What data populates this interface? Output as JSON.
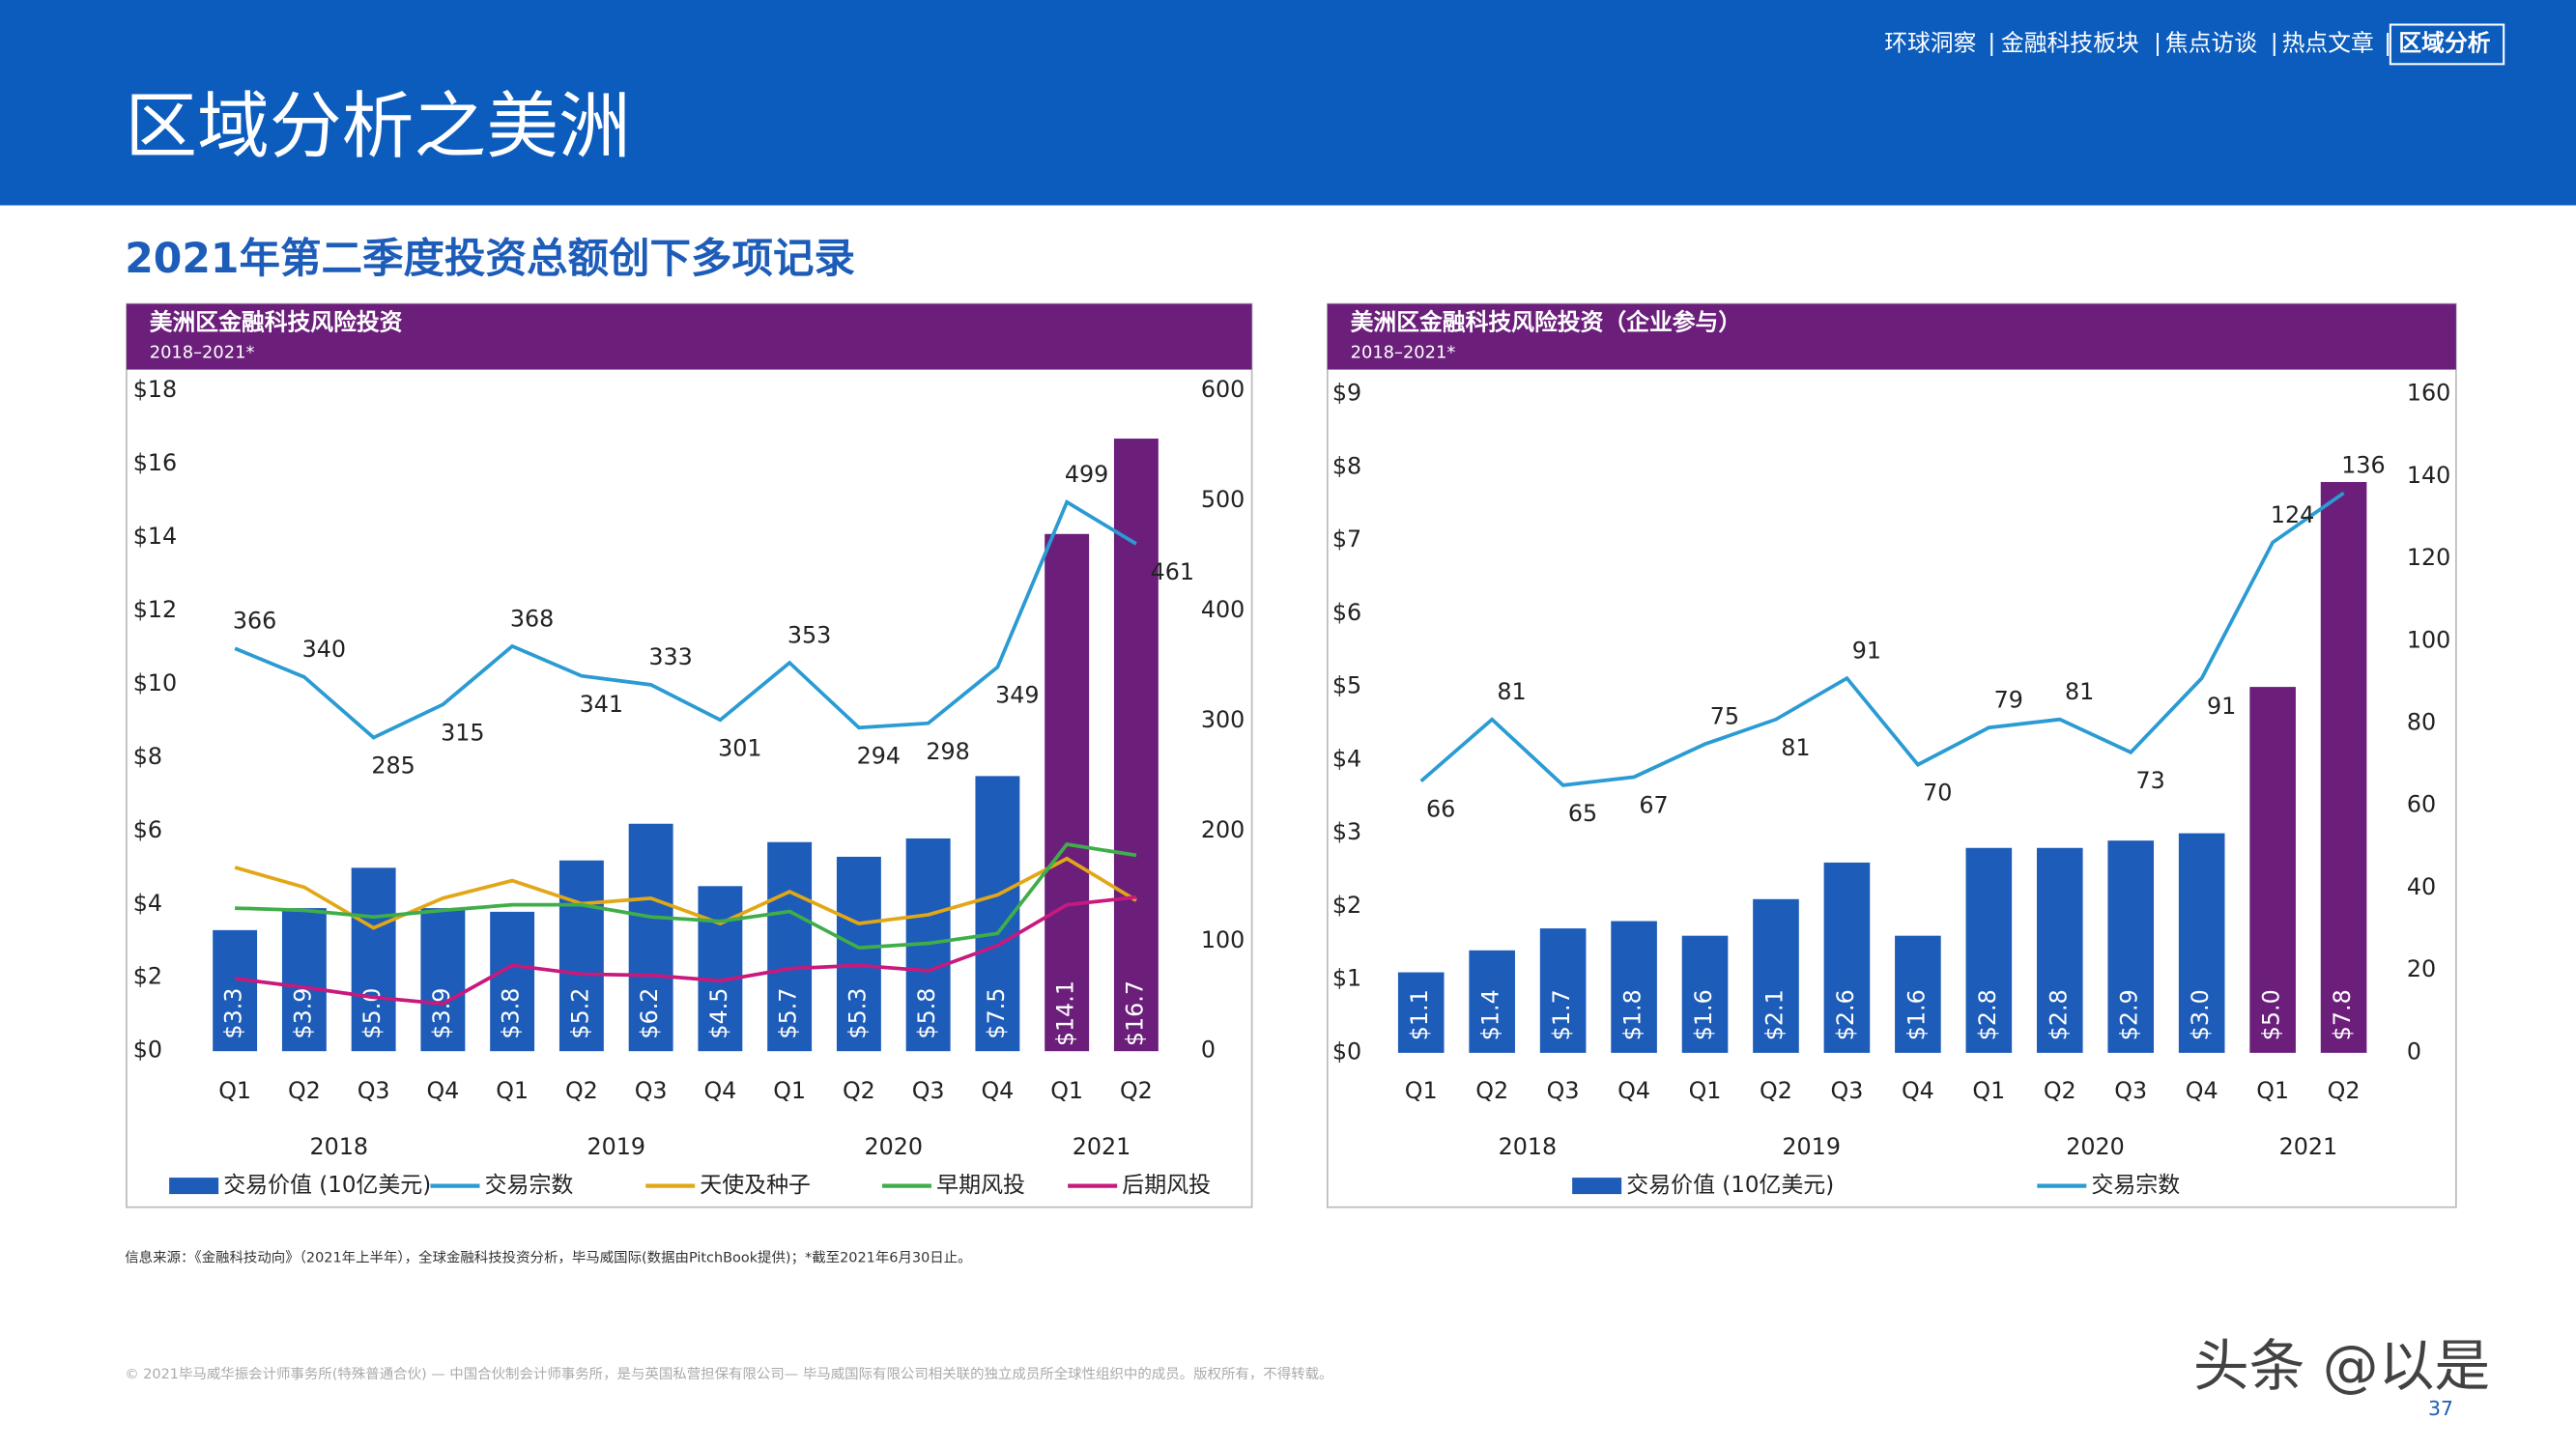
{
  "header": {
    "nav": [
      "环球洞察",
      "金融科技板块",
      "焦点访谈",
      "热点文章",
      "区域分析"
    ],
    "title": "区域分析之美洲"
  },
  "heading": "2021年第二季度投资总额创下多项记录",
  "chart_data": [
    {
      "type": "combo",
      "title": "美洲区金融科技风险投资",
      "subtitle": "2018–2021*",
      "categories": [
        "Q1",
        "Q2",
        "Q3",
        "Q4",
        "Q1",
        "Q2",
        "Q3",
        "Q4",
        "Q1",
        "Q2",
        "Q3",
        "Q4",
        "Q1",
        "Q2"
      ],
      "years": [
        "2018",
        "2019",
        "2020",
        "2021"
      ],
      "ylim": [
        0,
        18
      ],
      "yticks": [
        {
          "value": 0,
          "label": "$0"
        },
        {
          "value": 2,
          "label": "$2"
        },
        {
          "value": 4,
          "label": "$4"
        },
        {
          "value": 6,
          "label": "$6"
        },
        {
          "value": 8,
          "label": "$8"
        },
        {
          "value": 10,
          "label": "$10"
        },
        {
          "value": 12,
          "label": "$12"
        },
        {
          "value": 14,
          "label": "$14"
        },
        {
          "value": 16,
          "label": "$16"
        },
        {
          "value": 18,
          "label": "$18"
        }
      ],
      "y2lim": [
        0,
        600
      ],
      "y2ticks": [
        0,
        100,
        200,
        300,
        400,
        500,
        600
      ],
      "series": [
        {
          "name": "交易价值 (10亿美元)",
          "type": "bar",
          "color": "#1d5cb8",
          "colors": [
            "#1d5cb8",
            "#1d5cb8",
            "#1d5cb8",
            "#1d5cb8",
            "#1d5cb8",
            "#1d5cb8",
            "#1d5cb8",
            "#1d5cb8",
            "#1d5cb8",
            "#1d5cb8",
            "#1d5cb8",
            "#1d5cb8",
            "#6b1f7b",
            "#6b1f7b"
          ],
          "values": [
            3.3,
            3.9,
            5.0,
            3.9,
            3.8,
            5.2,
            6.2,
            4.5,
            5.7,
            5.3,
            5.8,
            7.5,
            14.1,
            16.7
          ],
          "value_labels": [
            "$3.3",
            "$3.9",
            "$5.0",
            "$3.9",
            "$3.8",
            "$5.2",
            "$6.2",
            "$4.5",
            "$5.7",
            "$5.3",
            "$5.8",
            "$7.5",
            "$14.1",
            "$16.7"
          ]
        },
        {
          "name": "交易宗数",
          "type": "line",
          "color": "#2a9bd3",
          "axis": "y2",
          "data_labels": true,
          "values": [
            366,
            340,
            285,
            315,
            368,
            341,
            333,
            301,
            353,
            294,
            298,
            349,
            499,
            461
          ]
        },
        {
          "name": "天使及种子",
          "type": "line",
          "color": "#e2a716",
          "axis": "y2",
          "values": [
            167,
            149,
            112,
            139,
            155,
            134,
            139,
            116,
            145,
            116,
            124,
            142,
            175,
            137
          ]
        },
        {
          "name": "早期风投",
          "type": "line",
          "color": "#3fae49",
          "axis": "y2",
          "values": [
            130,
            128,
            122,
            128,
            133,
            133,
            122,
            118,
            127,
            94,
            98,
            107,
            188,
            178
          ]
        },
        {
          "name": "后期风投",
          "type": "line",
          "color": "#c8197d",
          "axis": "y2",
          "values": [
            66,
            58,
            49,
            43,
            78,
            70,
            69,
            64,
            75,
            78,
            73,
            96,
            133,
            140
          ]
        }
      ]
    },
    {
      "type": "combo",
      "title": "美洲区金融科技风险投资（企业参与）",
      "subtitle": "2018–2021*",
      "categories": [
        "Q1",
        "Q2",
        "Q3",
        "Q4",
        "Q1",
        "Q2",
        "Q3",
        "Q4",
        "Q1",
        "Q2",
        "Q3",
        "Q4",
        "Q1",
        "Q2"
      ],
      "years": [
        "2018",
        "2019",
        "2020",
        "2021"
      ],
      "ylim": [
        0,
        9
      ],
      "yticks": [
        {
          "value": 0,
          "label": "$0"
        },
        {
          "value": 1,
          "label": "$1"
        },
        {
          "value": 2,
          "label": "$2"
        },
        {
          "value": 3,
          "label": "$3"
        },
        {
          "value": 4,
          "label": "$4"
        },
        {
          "value": 5,
          "label": "$5"
        },
        {
          "value": 6,
          "label": "$6"
        },
        {
          "value": 7,
          "label": "$7"
        },
        {
          "value": 8,
          "label": "$8"
        },
        {
          "value": 9,
          "label": "$9"
        }
      ],
      "y2lim": [
        0,
        160
      ],
      "y2ticks": [
        0,
        20,
        40,
        60,
        80,
        100,
        120,
        140,
        160
      ],
      "series": [
        {
          "name": "交易价值 (10亿美元)",
          "type": "bar",
          "color": "#1d5cb8",
          "colors": [
            "#1d5cb8",
            "#1d5cb8",
            "#1d5cb8",
            "#1d5cb8",
            "#1d5cb8",
            "#1d5cb8",
            "#1d5cb8",
            "#1d5cb8",
            "#1d5cb8",
            "#1d5cb8",
            "#1d5cb8",
            "#1d5cb8",
            "#6b1f7b",
            "#6b1f7b"
          ],
          "values": [
            1.1,
            1.4,
            1.7,
            1.8,
            1.6,
            2.1,
            2.6,
            1.6,
            2.8,
            2.8,
            2.9,
            3.0,
            5.0,
            7.8
          ],
          "value_labels": [
            "$1.1",
            "$1.4",
            "$1.7",
            "$1.8",
            "$1.6",
            "$2.1",
            "$2.6",
            "$1.6",
            "$2.8",
            "$2.8",
            "$2.9",
            "$3.0",
            "$5.0",
            "$7.8"
          ]
        },
        {
          "name": "交易宗数",
          "type": "line",
          "color": "#2a9bd3",
          "axis": "y2",
          "data_labels": true,
          "values": [
            66,
            81,
            65,
            67,
            75,
            81,
            91,
            70,
            79,
            81,
            73,
            91,
            124,
            136
          ]
        }
      ]
    }
  ],
  "source": "信息来源：《金融科技动向》（2021年上半年），全球金融科技投资分析，毕马威国际(数据由PitchBook提供)；*截至2021年6月30日止。",
  "footer": {
    "copyright": "© 2021毕马威华振会计师事务所(特殊普通合伙) — 中国合伙制会计师事务所，是与英国私营担保有限公司— 毕马威国际有限公司相关联的独立成员所全球性组织中的成员。版权所有，不得转载。",
    "page": "37",
    "watermark": "头条 @以是"
  }
}
